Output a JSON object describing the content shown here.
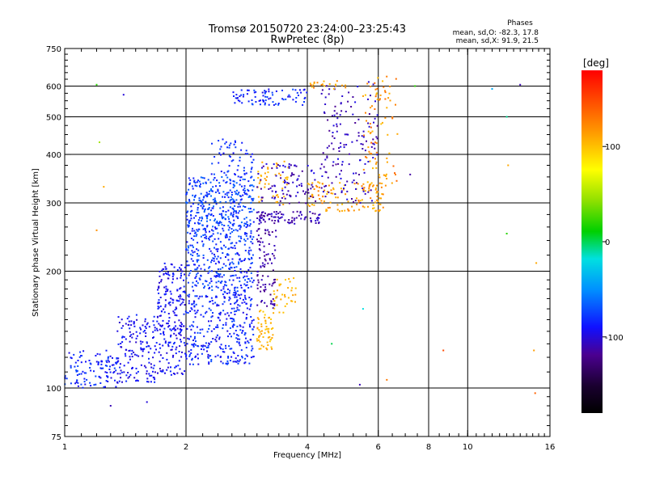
{
  "title_line1": "Tromsø 20150720 23:24:00–23:25:43",
  "title_line2": "RwPretec (8p)",
  "info": {
    "heading": "Phases",
    "line_o": "mean, sd,O:  -82.3, 17.8",
    "line_x": "mean, sd,X:  91.9, 21.5"
  },
  "colorbar": {
    "label": "[deg]",
    "range": [
      -180,
      180
    ],
    "ticks": [
      {
        "value": 100,
        "label": "100"
      },
      {
        "value": 0,
        "label": "0"
      },
      {
        "value": -100,
        "label": "-100"
      }
    ]
  },
  "chart_data": {
    "type": "scatter",
    "xlabel": "Frequency [MHz]",
    "ylabel": "Stationary phase Virtual Height [km]",
    "x_scale": "log",
    "y_scale": "log",
    "xlim": [
      1,
      16
    ],
    "ylim": [
      75,
      750
    ],
    "x_ticks": [
      {
        "value": 1,
        "label": "1"
      },
      {
        "value": 2,
        "label": "2"
      },
      {
        "value": 4,
        "label": "4"
      },
      {
        "value": 6,
        "label": "6"
      },
      {
        "value": 8,
        "label": "8"
      },
      {
        "value": 10,
        "label": "10"
      },
      {
        "value": 16,
        "label": "16"
      }
    ],
    "x_gridlines": [
      2,
      4,
      6,
      8,
      10
    ],
    "y_ticks": [
      {
        "value": 75,
        "label": "75"
      },
      {
        "value": 100,
        "label": "100"
      },
      {
        "value": 200,
        "label": "200"
      },
      {
        "value": 300,
        "label": "300"
      },
      {
        "value": 400,
        "label": "400"
      },
      {
        "value": 500,
        "label": "500"
      },
      {
        "value": 600,
        "label": "600"
      },
      {
        "value": 750,
        "label": "750"
      }
    ],
    "y_gridlines": [
      100,
      200,
      300,
      400,
      500,
      600
    ],
    "grid": true,
    "color_variable": "phase [deg]",
    "clusters": [
      {
        "f": [
          1.0,
          1.35
        ],
        "h": [
          100,
          125
        ],
        "phase": [
          -100,
          -70
        ],
        "count": 110
      },
      {
        "f": [
          1.35,
          1.7
        ],
        "h": [
          103,
          155
        ],
        "phase": [
          -105,
          -80
        ],
        "count": 160
      },
      {
        "f": [
          1.7,
          2.0
        ],
        "h": [
          108,
          210
        ],
        "phase": [
          -105,
          -80
        ],
        "count": 230
      },
      {
        "f": [
          2.0,
          2.95
        ],
        "h": [
          115,
          175
        ],
        "phase": [
          -100,
          -70
        ],
        "count": 320
      },
      {
        "f": [
          2.0,
          2.95
        ],
        "h": [
          175,
          260
        ],
        "phase": [
          -95,
          -65
        ],
        "count": 340
      },
      {
        "f": [
          2.0,
          2.95
        ],
        "h": [
          260,
          350
        ],
        "phase": [
          -90,
          -60
        ],
        "count": 320
      },
      {
        "f": [
          2.3,
          2.95
        ],
        "h": [
          350,
          440
        ],
        "phase": [
          -95,
          -70
        ],
        "count": 60
      },
      {
        "f": [
          3.0,
          3.35
        ],
        "h": [
          160,
          260
        ],
        "phase": [
          -125,
          -105
        ],
        "count": 90
      },
      {
        "f": [
          3.0,
          3.3
        ],
        "h": [
          125,
          160
        ],
        "phase": [
          95,
          115
        ],
        "count": 60
      },
      {
        "f": [
          3.3,
          3.75
        ],
        "h": [
          155,
          195
        ],
        "phase": [
          95,
          115
        ],
        "count": 35
      },
      {
        "f": [
          3.0,
          3.6
        ],
        "h": [
          295,
          390
        ],
        "phase": [
          100,
          115
        ],
        "count": 45
      },
      {
        "f": [
          3.0,
          4.3
        ],
        "h": [
          265,
          285
        ],
        "phase": [
          -120,
          -100
        ],
        "count": 90
      },
      {
        "f": [
          3.0,
          4.2
        ],
        "h": [
          295,
          380
        ],
        "phase": [
          -125,
          -95
        ],
        "count": 90
      },
      {
        "f": [
          4.0,
          6.2
        ],
        "h": [
          285,
          340
        ],
        "phase": [
          100,
          130
        ],
        "count": 110
      },
      {
        "f": [
          4.3,
          6.0
        ],
        "h": [
          300,
          620
        ],
        "phase": [
          -120,
          -95
        ],
        "count": 150
      },
      {
        "f": [
          5.5,
          6.7
        ],
        "h": [
          320,
          640
        ],
        "phase": [
          100,
          140
        ],
        "count": 90
      },
      {
        "f": [
          2.6,
          4.0
        ],
        "h": [
          535,
          590
        ],
        "phase": [
          -100,
          -70
        ],
        "count": 80
      },
      {
        "f": [
          4.0,
          5.0
        ],
        "h": [
          590,
          620
        ],
        "phase": [
          100,
          140
        ],
        "count": 20
      }
    ],
    "outliers": [
      {
        "f": 1.2,
        "h": 605,
        "phase": 20
      },
      {
        "f": 1.22,
        "h": 430,
        "phase": 50
      },
      {
        "f": 1.4,
        "h": 570,
        "phase": -100
      },
      {
        "f": 1.25,
        "h": 330,
        "phase": 110
      },
      {
        "f": 1.3,
        "h": 90,
        "phase": -110
      },
      {
        "f": 1.6,
        "h": 92,
        "phase": -100
      },
      {
        "f": 1.2,
        "h": 255,
        "phase": 120
      },
      {
        "f": 5.5,
        "h": 160,
        "phase": -20
      },
      {
        "f": 5.4,
        "h": 102,
        "phase": -110
      },
      {
        "f": 7.2,
        "h": 355,
        "phase": -115
      },
      {
        "f": 8.7,
        "h": 125,
        "phase": 150
      },
      {
        "f": 11.5,
        "h": 590,
        "phase": -40
      },
      {
        "f": 12.5,
        "h": 500,
        "phase": -10
      },
      {
        "f": 12.6,
        "h": 375,
        "phase": 110
      },
      {
        "f": 12.5,
        "h": 250,
        "phase": 20
      },
      {
        "f": 14.8,
        "h": 210,
        "phase": 110
      },
      {
        "f": 14.6,
        "h": 125,
        "phase": 115
      },
      {
        "f": 14.7,
        "h": 97,
        "phase": 140
      },
      {
        "f": 4.6,
        "h": 130,
        "phase": 0
      },
      {
        "f": 6.3,
        "h": 105,
        "phase": 130
      },
      {
        "f": 13.5,
        "h": 605,
        "phase": -110
      },
      {
        "f": 7.4,
        "h": 600,
        "phase": 20
      }
    ]
  }
}
